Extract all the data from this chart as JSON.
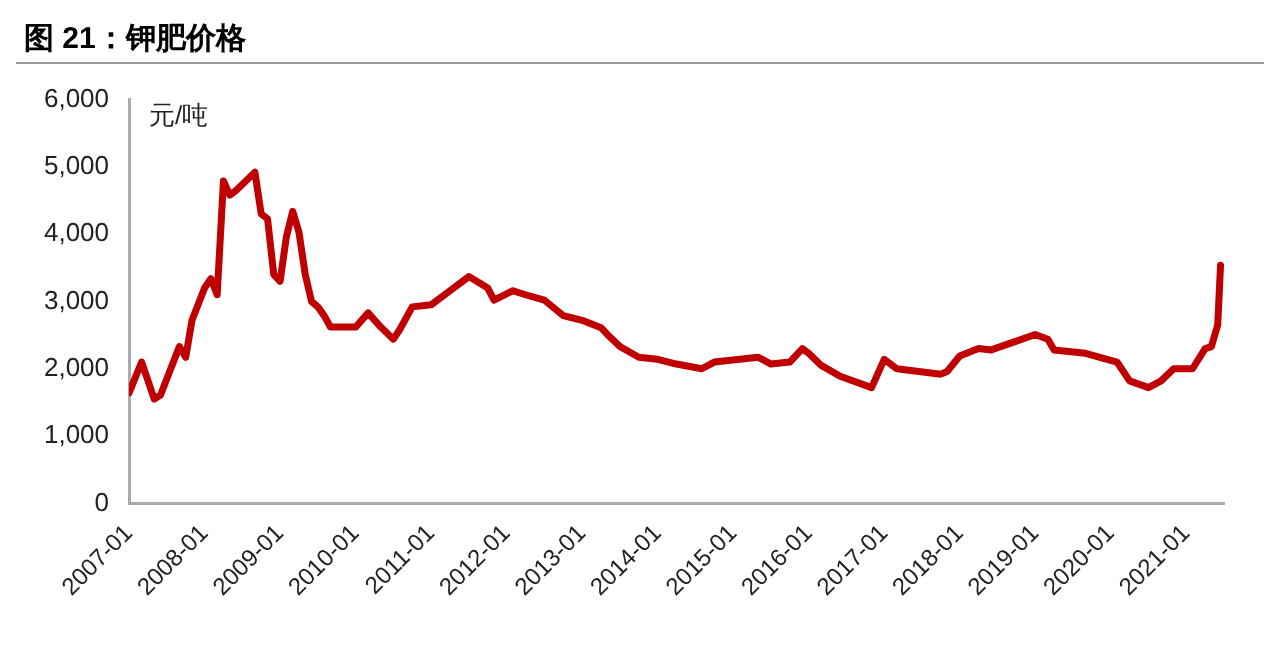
{
  "chart_data": {
    "type": "line",
    "title": "图 21：钾肥价格",
    "ylabel": "元/吨",
    "x": [
      "2007-01",
      "2007-03",
      "2007-05",
      "2007-06",
      "2007-09",
      "2007-10",
      "2007-11",
      "2008-01",
      "2008-02",
      "2008-03",
      "2008-04",
      "2008-05",
      "2008-06",
      "2008-09",
      "2008-10",
      "2008-11",
      "2008-12",
      "2009-01",
      "2009-02",
      "2009-03",
      "2009-04",
      "2009-05",
      "2009-06",
      "2009-07",
      "2009-08",
      "2009-09",
      "2010-01",
      "2010-03",
      "2010-05",
      "2010-07",
      "2010-08",
      "2010-10",
      "2011-01",
      "2011-04",
      "2011-07",
      "2011-10",
      "2011-11",
      "2012-02",
      "2012-04",
      "2012-07",
      "2012-10",
      "2013-01",
      "2013-04",
      "2013-05",
      "2013-07",
      "2013-10",
      "2014-01",
      "2014-04",
      "2014-08",
      "2014-10",
      "2015-05",
      "2015-07",
      "2015-10",
      "2015-12",
      "2016-01",
      "2016-03",
      "2016-06",
      "2016-11",
      "2017-01",
      "2017-03",
      "2017-10",
      "2017-11",
      "2018-01",
      "2018-04",
      "2018-06",
      "2018-10",
      "2019-01",
      "2019-03",
      "2019-04",
      "2019-09",
      "2020-02",
      "2020-04",
      "2020-07",
      "2020-09",
      "2020-11",
      "2021-02",
      "2021-04",
      "2021-05",
      "2021-06",
      "2021-06-15"
    ],
    "series": [
      {
        "color": "#c00000",
        "values": [
          1640,
          2100,
          1550,
          1610,
          2330,
          2170,
          2720,
          3200,
          3340,
          3100,
          4790,
          4580,
          4650,
          4920,
          4300,
          4230,
          3400,
          3300,
          3960,
          4340,
          4030,
          3400,
          3000,
          2920,
          2790,
          2620,
          2620,
          2830,
          2620,
          2440,
          2580,
          2920,
          2950,
          3160,
          3370,
          3200,
          3020,
          3160,
          3100,
          3020,
          2790,
          2720,
          2610,
          2510,
          2330,
          2170,
          2140,
          2070,
          2000,
          2100,
          2170,
          2070,
          2100,
          2300,
          2230,
          2050,
          1890,
          1720,
          2140,
          2000,
          1920,
          1960,
          2190,
          2300,
          2280,
          2410,
          2510,
          2440,
          2280,
          2230,
          2100,
          1820,
          1720,
          1820,
          2000,
          2000,
          2300,
          2330,
          2650,
          3540
        ]
      }
    ],
    "xlim": [
      "2007-01",
      "2021-07"
    ],
    "xticks": [
      "2007-01",
      "2008-01",
      "2009-01",
      "2010-01",
      "2011-01",
      "2012-01",
      "2013-01",
      "2014-01",
      "2015-01",
      "2016-01",
      "2017-01",
      "2018-01",
      "2019-01",
      "2020-01",
      "2021-01"
    ],
    "ylim": [
      0,
      6000
    ],
    "yticks": [
      {
        "value": 0,
        "label": "0"
      },
      {
        "value": 1000,
        "label": "1,000"
      },
      {
        "value": 2000,
        "label": "2,000"
      },
      {
        "value": 3000,
        "label": "3,000"
      },
      {
        "value": 4000,
        "label": "4,000"
      },
      {
        "value": 5000,
        "label": "5,000"
      },
      {
        "value": 6000,
        "label": "6,000"
      }
    ],
    "grid": false,
    "legend": false,
    "marker": "none",
    "line_style": "solid"
  }
}
